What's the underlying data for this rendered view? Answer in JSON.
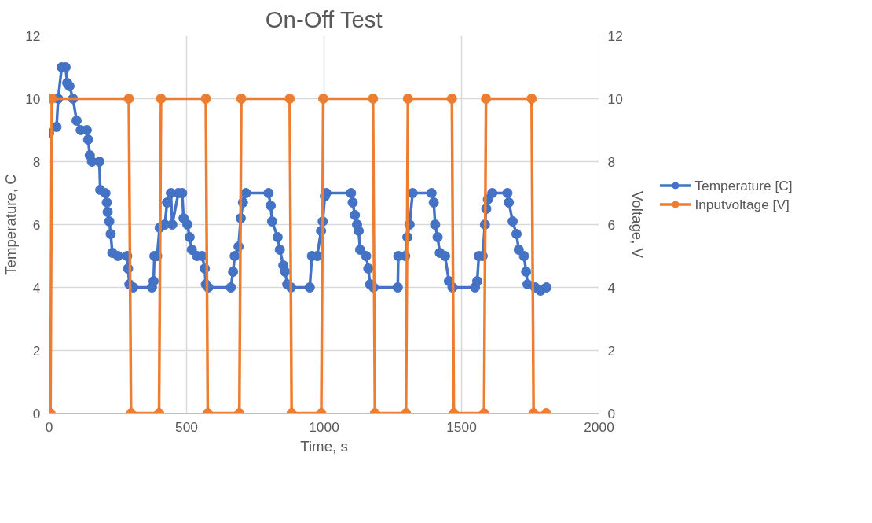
{
  "chart_data": {
    "type": "line",
    "title": "On-Off Test",
    "xlabel": "Time, s",
    "ylabel": "Temperature, C",
    "y2label": "Voltage, V",
    "xlim": [
      0,
      2000
    ],
    "xticks": [
      0,
      500,
      1000,
      1500,
      2000
    ],
    "ylim": [
      0,
      12
    ],
    "yticks": [
      0,
      2,
      4,
      6,
      8,
      10,
      12
    ],
    "y2lim": [
      0,
      12
    ],
    "y2ticks": [
      0,
      2,
      4,
      6,
      8,
      10,
      12
    ],
    "grid": true,
    "legend": "right",
    "marker": "circle",
    "line_style": "solid",
    "series": [
      {
        "name": "Temperature [C]",
        "color": "#4472c4",
        "x": [
          0,
          27,
          33,
          46,
          60,
          66,
          74,
          87,
          100,
          115,
          137,
          142,
          148,
          156,
          183,
          186,
          205,
          210,
          213,
          219,
          224,
          230,
          251,
          284,
          287,
          292,
          306,
          374,
          380,
          383,
          393,
          402,
          421,
          429,
          443,
          448,
          470,
          484,
          489,
          503,
          511,
          519,
          538,
          557,
          566,
          570,
          579,
          661,
          669,
          675,
          689,
          697,
          705,
          716,
          798,
          806,
          811,
          831,
          839,
          852,
          858,
          866,
          880,
          948,
          956,
          975,
          989,
          995,
          1003,
          1008,
          1098,
          1104,
          1112,
          1120,
          1126,
          1131,
          1153,
          1161,
          1167,
          1180,
          1268,
          1270,
          1295,
          1303,
          1311,
          1322,
          1391,
          1399,
          1404,
          1413,
          1421,
          1440,
          1454,
          1467,
          1549,
          1557,
          1563,
          1577,
          1585,
          1590,
          1596,
          1612,
          1667,
          1672,
          1686,
          1700,
          1708,
          1727,
          1735,
          1740,
          1768,
          1787,
          1809
        ],
        "values": [
          8.9,
          9.1,
          10,
          11,
          11,
          10.5,
          10.4,
          10,
          9.3,
          9,
          9,
          8.7,
          8.2,
          8,
          8,
          7.1,
          7,
          6.7,
          6.4,
          6.1,
          5.7,
          5.1,
          5,
          5,
          4.6,
          4.1,
          4,
          4,
          4.2,
          5,
          5,
          5.9,
          6,
          6.7,
          7,
          6,
          7,
          7,
          6.2,
          6,
          5.6,
          5.2,
          5,
          5,
          4.6,
          4.1,
          4,
          4,
          4.5,
          5,
          5.3,
          6.2,
          6.7,
          7,
          7,
          6.6,
          6.1,
          5.6,
          5.2,
          4.7,
          4.5,
          4.1,
          4,
          4,
          5,
          5,
          5.8,
          6.1,
          6.9,
          7,
          7,
          6.7,
          6.3,
          6,
          5.8,
          5.2,
          5,
          4.6,
          4.1,
          4,
          4,
          5,
          5,
          5.6,
          6,
          7,
          7,
          6.7,
          6,
          5.6,
          5.1,
          5,
          4.2,
          4,
          4,
          4.2,
          5,
          5,
          6,
          6.5,
          6.8,
          7,
          7,
          6.7,
          6.1,
          5.7,
          5.2,
          5,
          4.5,
          4.1,
          4,
          3.9,
          4
        ]
      },
      {
        "name": "Inputvoltage [V]",
        "color": "#ed7d31",
        "axis": "y2",
        "x": [
          5,
          10,
          290,
          298,
          400,
          407,
          570,
          577,
          692,
          699,
          875,
          882,
          990,
          997,
          1178,
          1185,
          1298,
          1305,
          1465,
          1472,
          1582,
          1589,
          1755,
          1762,
          1808
        ],
        "values": [
          0,
          10,
          10,
          0,
          0,
          10,
          10,
          0,
          0,
          10,
          10,
          0,
          0,
          10,
          10,
          0,
          0,
          10,
          10,
          0,
          0,
          10,
          10,
          0,
          0
        ]
      }
    ]
  }
}
